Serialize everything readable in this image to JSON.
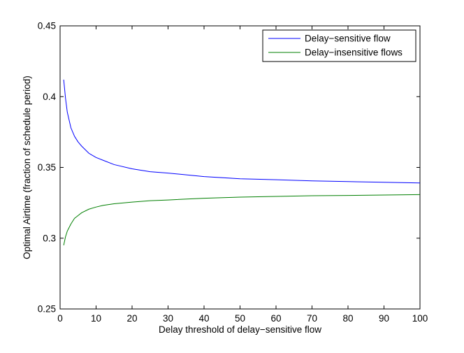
{
  "chart_data": {
    "type": "line",
    "title": "",
    "xlabel": "Delay threshold of delay−sensitive flow",
    "ylabel": "Optimal Airtime (fraction of schedule period)",
    "xlim": [
      0,
      100
    ],
    "ylim": [
      0.25,
      0.45
    ],
    "xticks": [
      0,
      10,
      20,
      30,
      40,
      50,
      60,
      70,
      80,
      90,
      100
    ],
    "xtick_labels": [
      "0",
      "10",
      "20",
      "30",
      "40",
      "50",
      "60",
      "70",
      "80",
      "90",
      "100"
    ],
    "yticks": [
      0.25,
      0.3,
      0.35,
      0.4,
      0.45
    ],
    "ytick_labels": [
      "0.25",
      "0.3",
      "0.35",
      "0.4",
      "0.45"
    ],
    "grid": false,
    "legend_position": "top-right",
    "series": [
      {
        "name": "Delay−sensitive flow",
        "color": "#0000ff",
        "x": [
          1,
          1.5,
          2,
          3,
          4,
          5,
          6,
          8,
          10,
          12,
          15,
          20,
          25,
          30,
          40,
          50,
          60,
          70,
          80,
          90,
          100
        ],
        "values": [
          0.412,
          0.399,
          0.389,
          0.378,
          0.372,
          0.368,
          0.365,
          0.36,
          0.357,
          0.355,
          0.352,
          0.349,
          0.347,
          0.346,
          0.3435,
          0.342,
          0.3413,
          0.3405,
          0.34,
          0.3395,
          0.339
        ]
      },
      {
        "name": "Delay−insensitive flows",
        "color": "#007f00",
        "x": [
          1,
          1.5,
          2,
          3,
          4,
          5,
          6,
          8,
          10,
          12,
          15,
          20,
          25,
          30,
          40,
          50,
          60,
          70,
          80,
          90,
          100
        ],
        "values": [
          0.295,
          0.301,
          0.305,
          0.31,
          0.314,
          0.316,
          0.318,
          0.3205,
          0.322,
          0.3232,
          0.3243,
          0.3255,
          0.3265,
          0.327,
          0.3282,
          0.329,
          0.3295,
          0.33,
          0.3302,
          0.3305,
          0.3308
        ]
      }
    ]
  }
}
